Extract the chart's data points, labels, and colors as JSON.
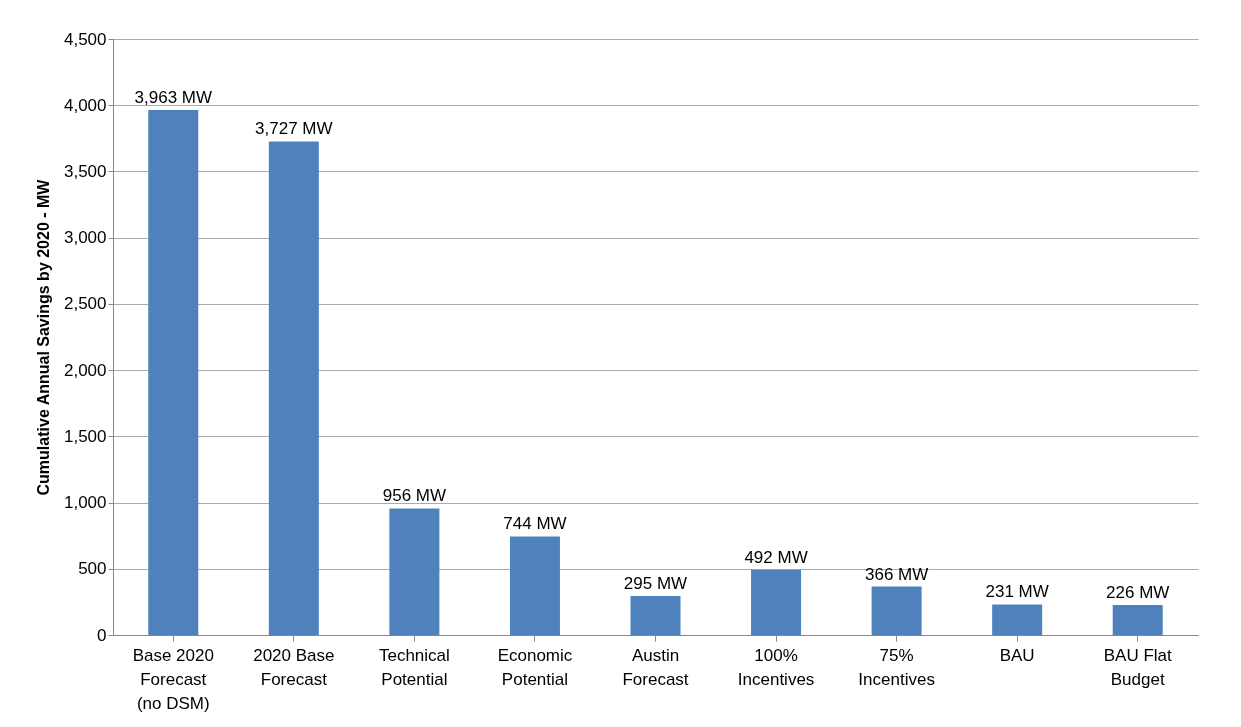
{
  "chart_data": {
    "type": "bar",
    "ylabel": "Cumulative Annual Savings by 2020 - MW",
    "categories": [
      "Base 2020 Forecast (no DSM)",
      "2020 Base Forecast",
      "Technical Potential",
      "Economic Potential",
      "Austin Forecast",
      "100% Incentives",
      "75% Incentives",
      "BAU",
      "BAU Flat Budget"
    ],
    "values": [
      3963,
      3727,
      956,
      744,
      295,
      492,
      366,
      231,
      226
    ],
    "value_labels": [
      "3,963 MW",
      "3,727 MW",
      "956 MW",
      "744 MW",
      "295 MW",
      "492 MW",
      "366 MW",
      "231 MW",
      "226 MW"
    ],
    "color": "#4f81bd",
    "ylim": [
      0,
      4500
    ],
    "yticks": [
      {
        "value": 0,
        "label": "0"
      },
      {
        "value": 500,
        "label": "500"
      },
      {
        "value": 1000,
        "label": "1,000"
      },
      {
        "value": 1500,
        "label": "1,500"
      },
      {
        "value": 2000,
        "label": "2,000"
      },
      {
        "value": 2500,
        "label": "2,500"
      },
      {
        "value": 3000,
        "label": "3,000"
      },
      {
        "value": 3500,
        "label": "3,500"
      },
      {
        "value": 4000,
        "label": "4,000"
      },
      {
        "value": 4500,
        "label": "4,500"
      }
    ],
    "grid": "y"
  }
}
